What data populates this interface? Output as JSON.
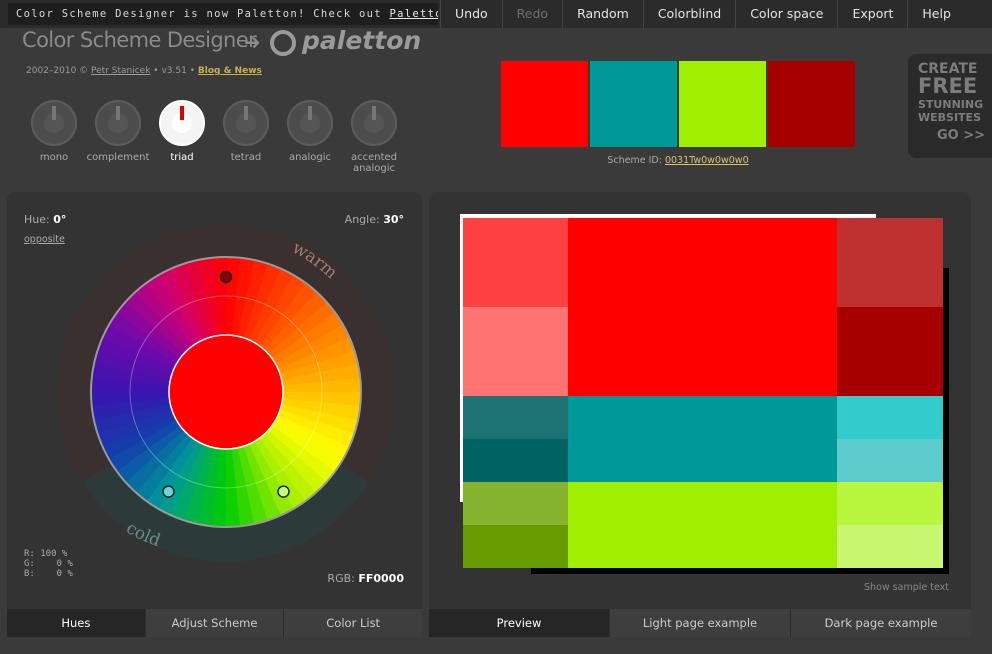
{
  "announcement": {
    "text": "Color Scheme Designer is now Paletton! Check out ",
    "link": "Paletton.com"
  },
  "menu": [
    {
      "label": "Undo",
      "enabled": true
    },
    {
      "label": "Redo",
      "enabled": false
    },
    {
      "label": "Random",
      "enabled": true
    },
    {
      "label": "Colorblind",
      "enabled": true
    },
    {
      "label": "Color space",
      "enabled": true
    },
    {
      "label": "Export",
      "enabled": true
    },
    {
      "label": "Help",
      "enabled": true
    }
  ],
  "header": {
    "logo": "Color Scheme Designer",
    "arrow": "➜",
    "paletton": "paletton",
    "credits_years": "2002–2010 © ",
    "credits_author": "Petr Stanicek",
    "credits_version": " • v3.51 • ",
    "credits_blog": "Blog & News"
  },
  "scheme_types": [
    {
      "label": "mono",
      "active": false
    },
    {
      "label": "complement",
      "active": false
    },
    {
      "label": "triad",
      "active": true
    },
    {
      "label": "tetrad",
      "active": false
    },
    {
      "label": "analogic",
      "active": false
    },
    {
      "label": "accented analogic",
      "active": false
    }
  ],
  "swatches": [
    "#FF0000",
    "#009999",
    "#A0EE00",
    "#A60000"
  ],
  "scheme_id": {
    "label": "Scheme ID: ",
    "value": "0031Tw0w0w0w0"
  },
  "promo": {
    "line1": "CREATE",
    "line2": "FREE",
    "line3": "STUNNING",
    "line4": "WEBSITES",
    "cta": "GO >>"
  },
  "hue": {
    "label": "Hue:",
    "value": "0°",
    "opposite": "opposite"
  },
  "angle": {
    "label": "Angle:",
    "value": "30°"
  },
  "wheel": {
    "warm": "warm",
    "cold": "cold",
    "center_color": "#FF0000",
    "markers": [
      {
        "hue_deg": 0,
        "color": "#8a0000"
      },
      {
        "hue_deg": 150,
        "color": "#c6ff7a"
      },
      {
        "hue_deg": 210,
        "color": "#6ad6d6"
      }
    ]
  },
  "rgb": {
    "r": "R: 100 %",
    "g": "G:    0 %",
    "b": "B:    0 %",
    "label": "RGB:",
    "hex": "FF0000"
  },
  "left_tabs": [
    {
      "label": "Hues",
      "active": true
    },
    {
      "label": "Adjust Scheme",
      "active": false
    },
    {
      "label": "Color List",
      "active": false
    }
  ],
  "preview": {
    "show_sample_text": "Show sample text",
    "colors": {
      "primary": "#FF0000",
      "primary_light1": "#FF4040",
      "primary_light2": "#FF7373",
      "primary_dark1": "#BF3030",
      "primary_dark2": "#A60000",
      "sec1": "#009999",
      "sec1_dark1": "#1D7373",
      "sec1_dark2": "#006363",
      "sec1_light1": "#33CCCC",
      "sec1_light2": "#5CCCCC",
      "sec2": "#A0EE00",
      "sec2_dark1": "#86B32D",
      "sec2_dark2": "#689B00",
      "sec2_light1": "#B9F73E",
      "sec2_light2": "#C9F76F"
    }
  },
  "right_tabs": [
    {
      "label": "Preview",
      "active": true
    },
    {
      "label": "Light page example",
      "active": false
    },
    {
      "label": "Dark page example",
      "active": false
    }
  ]
}
